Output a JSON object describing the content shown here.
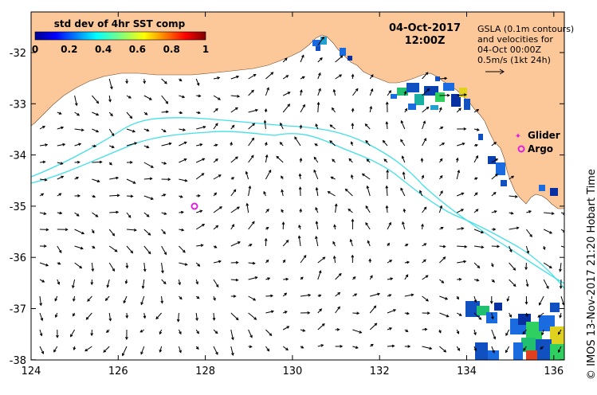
{
  "map": {
    "title_date": "04-Oct-2017",
    "title_time": "12:00Z",
    "colorbar": {
      "title": "std dev of 4hr SST comp",
      "ticks": [
        "0",
        "0.2",
        "0.4",
        "0.6",
        "0.8",
        "1"
      ]
    },
    "legend": {
      "line1": "GSLA (0.1m contours)",
      "line2": "and velocities for",
      "line3": "04-Oct 00:00Z",
      "line4": "0.5m/s (1kt 24h)",
      "glider": "Glider",
      "argo": "Argo"
    },
    "x_ticks": [
      "124",
      "126",
      "128",
      "130",
      "132",
      "134",
      "136"
    ],
    "y_ticks": [
      "-32",
      "-33",
      "-34",
      "-35",
      "-36",
      "-37",
      "-38"
    ],
    "credit": "© IMOS 13-Nov-2017 21:20 Hobart Time",
    "colors": {
      "land": "#fcc89a",
      "contour": "#40e0e8",
      "argo": "#e020e0",
      "arrow": "#000000"
    }
  }
}
